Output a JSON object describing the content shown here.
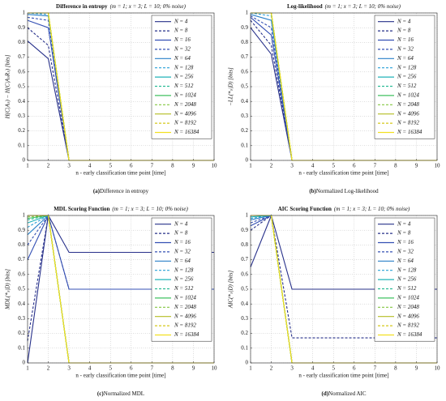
{
  "chart_data": [
    {
      "type": "line",
      "title": "Difference in entropy",
      "subtitle": "(m = 1; x = 3; L = 10; 0% noise)",
      "ylabel": "H(C|Aₛ) − H(C|AₛRₛ) [bits]",
      "xlabel": "n - early classification time point [time]",
      "caption_label": "(a)",
      "caption": "Difference in entropy",
      "x": [
        1,
        2,
        3,
        4,
        5,
        6,
        7,
        8,
        9,
        10
      ],
      "xlim": [
        1,
        10
      ],
      "xticks": [
        1,
        2,
        3,
        4,
        5,
        6,
        7,
        8,
        9,
        10
      ],
      "ylim": [
        0,
        1
      ],
      "yticks": [
        0,
        0.1,
        0.2,
        0.3,
        0.4,
        0.5,
        0.6,
        0.7,
        0.8,
        0.9,
        1
      ],
      "grid": true,
      "series": [
        {
          "name": "N = 4",
          "color": "#27308a",
          "dash": false,
          "values": [
            0.81,
            0.69,
            0,
            0,
            0,
            0,
            0,
            0,
            0,
            0
          ]
        },
        {
          "name": "N = 8",
          "color": "#27308a",
          "dash": true,
          "values": [
            0.9,
            0.78,
            0,
            0,
            0,
            0,
            0,
            0,
            0,
            0
          ]
        },
        {
          "name": "N = 16",
          "color": "#3450b4",
          "dash": false,
          "values": [
            0.95,
            0.9,
            0,
            0,
            0,
            0,
            0,
            0,
            0,
            0
          ]
        },
        {
          "name": "N = 32",
          "color": "#3450b4",
          "dash": true,
          "values": [
            0.97,
            0.95,
            0,
            0,
            0,
            0,
            0,
            0,
            0,
            0
          ]
        },
        {
          "name": "N = 64",
          "color": "#2a80c8",
          "dash": false,
          "values": [
            0.99,
            0.98,
            0,
            0,
            0,
            0,
            0,
            0,
            0,
            0
          ]
        },
        {
          "name": "N = 128",
          "color": "#28a0d8",
          "dash": true,
          "values": [
            1,
            0.99,
            0,
            0,
            0,
            0,
            0,
            0,
            0,
            0
          ]
        },
        {
          "name": "N = 256",
          "color": "#20b4b8",
          "dash": false,
          "values": [
            1,
            1,
            0,
            0,
            0,
            0,
            0,
            0,
            0,
            0
          ]
        },
        {
          "name": "N = 512",
          "color": "#2cbc96",
          "dash": true,
          "values": [
            1,
            1,
            0,
            0,
            0,
            0,
            0,
            0,
            0,
            0
          ]
        },
        {
          "name": "N = 1024",
          "color": "#40c260",
          "dash": false,
          "values": [
            1,
            1,
            0,
            0,
            0,
            0,
            0,
            0,
            0,
            0
          ]
        },
        {
          "name": "N = 2048",
          "color": "#84c840",
          "dash": true,
          "values": [
            1,
            1,
            0,
            0,
            0,
            0,
            0,
            0,
            0,
            0
          ]
        },
        {
          "name": "N = 4096",
          "color": "#b4be22",
          "dash": false,
          "values": [
            1,
            1,
            0,
            0,
            0,
            0,
            0,
            0,
            0,
            0
          ]
        },
        {
          "name": "N = 8192",
          "color": "#d6c81a",
          "dash": true,
          "values": [
            1,
            1,
            0,
            0,
            0,
            0,
            0,
            0,
            0,
            0
          ]
        },
        {
          "name": "N = 16384",
          "color": "#f2e020",
          "dash": false,
          "values": [
            1,
            1,
            0,
            0,
            0,
            0,
            0,
            0,
            0,
            0
          ]
        }
      ]
    },
    {
      "type": "line",
      "title": "Log-likelihood",
      "subtitle": "(m = 1; x = 3; L = 10; 0% noise)",
      "ylabel": "−LL(*ₛ|D) [bits]",
      "xlabel": "n - early classification time point [time]",
      "caption_label": "(b)",
      "caption": "Normalized Log-likelihood",
      "x": [
        1,
        2,
        3,
        4,
        5,
        6,
        7,
        8,
        9,
        10
      ],
      "xlim": [
        1,
        10
      ],
      "xticks": [
        1,
        2,
        3,
        4,
        5,
        6,
        7,
        8,
        9,
        10
      ],
      "ylim": [
        0,
        1
      ],
      "yticks": [
        0,
        0.1,
        0.2,
        0.3,
        0.4,
        0.5,
        0.6,
        0.7,
        0.8,
        0.9,
        1
      ],
      "grid": true,
      "series": [
        {
          "name": "N = 4",
          "color": "#27308a",
          "dash": false,
          "values": [
            0.9,
            0.72,
            0,
            0,
            0,
            0,
            0,
            0,
            0,
            0
          ]
        },
        {
          "name": "N = 8",
          "color": "#27308a",
          "dash": true,
          "values": [
            0.95,
            0.78,
            0,
            0,
            0,
            0,
            0,
            0,
            0,
            0
          ]
        },
        {
          "name": "N = 16",
          "color": "#3450b4",
          "dash": false,
          "values": [
            0.97,
            0.85,
            0,
            0,
            0,
            0,
            0,
            0,
            0,
            0
          ]
        },
        {
          "name": "N = 32",
          "color": "#3450b4",
          "dash": true,
          "values": [
            0.98,
            0.9,
            0,
            0,
            0,
            0,
            0,
            0,
            0,
            0
          ]
        },
        {
          "name": "N = 64",
          "color": "#2a80c8",
          "dash": false,
          "values": [
            0.99,
            0.95,
            0,
            0,
            0,
            0,
            0,
            0,
            0,
            0
          ]
        },
        {
          "name": "N = 128",
          "color": "#28a0d8",
          "dash": true,
          "values": [
            1,
            0.98,
            0,
            0,
            0,
            0,
            0,
            0,
            0,
            0
          ]
        },
        {
          "name": "N = 256",
          "color": "#20b4b8",
          "dash": false,
          "values": [
            1,
            1,
            0,
            0,
            0,
            0,
            0,
            0,
            0,
            0
          ]
        },
        {
          "name": "N = 512",
          "color": "#2cbc96",
          "dash": true,
          "values": [
            1,
            1,
            0,
            0,
            0,
            0,
            0,
            0,
            0,
            0
          ]
        },
        {
          "name": "N = 1024",
          "color": "#40c260",
          "dash": false,
          "values": [
            1,
            1,
            0,
            0,
            0,
            0,
            0,
            0,
            0,
            0
          ]
        },
        {
          "name": "N = 2048",
          "color": "#84c840",
          "dash": true,
          "values": [
            1,
            1,
            0,
            0,
            0,
            0,
            0,
            0,
            0,
            0
          ]
        },
        {
          "name": "N = 4096",
          "color": "#b4be22",
          "dash": false,
          "values": [
            1,
            1,
            0,
            0,
            0,
            0,
            0,
            0,
            0,
            0
          ]
        },
        {
          "name": "N = 8192",
          "color": "#d6c81a",
          "dash": true,
          "values": [
            1,
            1,
            0,
            0,
            0,
            0,
            0,
            0,
            0,
            0
          ]
        },
        {
          "name": "N = 16384",
          "color": "#f2e020",
          "dash": false,
          "values": [
            1,
            1,
            0,
            0,
            0,
            0,
            0,
            0,
            0,
            0
          ]
        }
      ]
    },
    {
      "type": "line",
      "title": "MDL Scoring Function",
      "subtitle": "(m = 1; x = 3; L = 10; 0% noise)",
      "ylabel": "MDL(*ₛ|D) [bits]",
      "xlabel": "n - early classification time point [time]",
      "caption_label": "(c)",
      "caption": "Normalized MDL",
      "x": [
        1,
        2,
        3,
        4,
        5,
        6,
        7,
        8,
        9,
        10
      ],
      "xlim": [
        1,
        10
      ],
      "xticks": [
        1,
        2,
        3,
        4,
        5,
        6,
        7,
        8,
        9,
        10
      ],
      "ylim": [
        0,
        1
      ],
      "yticks": [
        0,
        0.1,
        0.2,
        0.3,
        0.4,
        0.5,
        0.6,
        0.7,
        0.8,
        0.9,
        1
      ],
      "grid": true,
      "series": [
        {
          "name": "N = 4",
          "color": "#27308a",
          "dash": false,
          "values": [
            0,
            1,
            0.75,
            0.75,
            0.75,
            0.75,
            0.75,
            0.75,
            0.75,
            0.75
          ]
        },
        {
          "name": "N = 8",
          "color": "#27308a",
          "dash": true,
          "values": [
            0.15,
            1,
            0.5,
            0.5,
            0.5,
            0.5,
            0.5,
            0.5,
            0.5,
            0.5
          ]
        },
        {
          "name": "N = 16",
          "color": "#3450b4",
          "dash": false,
          "values": [
            0.7,
            1,
            0.5,
            0.5,
            0.5,
            0.5,
            0.5,
            0.5,
            0.5,
            0.5
          ]
        },
        {
          "name": "N = 32",
          "color": "#3450b4",
          "dash": true,
          "values": [
            0.8,
            1,
            0,
            0,
            0,
            0,
            0,
            0,
            0,
            0
          ]
        },
        {
          "name": "N = 64",
          "color": "#2a80c8",
          "dash": false,
          "values": [
            0.87,
            1,
            0,
            0,
            0,
            0,
            0,
            0,
            0,
            0
          ]
        },
        {
          "name": "N = 128",
          "color": "#28a0d8",
          "dash": true,
          "values": [
            0.92,
            1,
            0,
            0,
            0,
            0,
            0,
            0,
            0,
            0
          ]
        },
        {
          "name": "N = 256",
          "color": "#20b4b8",
          "dash": false,
          "values": [
            0.95,
            1,
            0,
            0,
            0,
            0,
            0,
            0,
            0,
            0
          ]
        },
        {
          "name": "N = 512",
          "color": "#2cbc96",
          "dash": true,
          "values": [
            0.97,
            1,
            0,
            0,
            0,
            0,
            0,
            0,
            0,
            0
          ]
        },
        {
          "name": "N = 1024",
          "color": "#40c260",
          "dash": false,
          "values": [
            0.98,
            1,
            0,
            0,
            0,
            0,
            0,
            0,
            0,
            0
          ]
        },
        {
          "name": "N = 2048",
          "color": "#84c840",
          "dash": true,
          "values": [
            0.99,
            1,
            0,
            0,
            0,
            0,
            0,
            0,
            0,
            0
          ]
        },
        {
          "name": "N = 4096",
          "color": "#b4be22",
          "dash": false,
          "values": [
            1,
            1,
            0,
            0,
            0,
            0,
            0,
            0,
            0,
            0
          ]
        },
        {
          "name": "N = 8192",
          "color": "#d6c81a",
          "dash": true,
          "values": [
            1,
            1,
            0,
            0,
            0,
            0,
            0,
            0,
            0,
            0
          ]
        },
        {
          "name": "N = 16384",
          "color": "#f2e020",
          "dash": false,
          "values": [
            1,
            1,
            0,
            0,
            0,
            0,
            0,
            0,
            0,
            0
          ]
        }
      ]
    },
    {
      "type": "line",
      "title": "AIC Scoring Function",
      "subtitle": "(m = 1; x = 3; L = 10; 0% noise)",
      "ylabel": "AIC(*ₛ|D) [bits]",
      "xlabel": "n - early classification time point [time]",
      "caption_label": "(d)",
      "caption": "Normalized AIC",
      "x": [
        1,
        2,
        3,
        4,
        5,
        6,
        7,
        8,
        9,
        10
      ],
      "xlim": [
        1,
        10
      ],
      "xticks": [
        1,
        2,
        3,
        4,
        5,
        6,
        7,
        8,
        9,
        10
      ],
      "ylim": [
        0,
        1
      ],
      "yticks": [
        0,
        0.1,
        0.2,
        0.3,
        0.4,
        0.5,
        0.6,
        0.7,
        0.8,
        0.9,
        1
      ],
      "grid": true,
      "series": [
        {
          "name": "N = 4",
          "color": "#27308a",
          "dash": false,
          "values": [
            0.65,
            1,
            0.5,
            0.5,
            0.5,
            0.5,
            0.5,
            0.5,
            0.5,
            0.5
          ]
        },
        {
          "name": "N = 8",
          "color": "#27308a",
          "dash": true,
          "values": [
            0.9,
            1,
            0.17,
            0.17,
            0.17,
            0.17,
            0.17,
            0.17,
            0.17,
            0.17
          ]
        },
        {
          "name": "N = 16",
          "color": "#3450b4",
          "dash": false,
          "values": [
            0.93,
            1,
            0,
            0,
            0,
            0,
            0,
            0,
            0,
            0
          ]
        },
        {
          "name": "N = 32",
          "color": "#3450b4",
          "dash": true,
          "values": [
            0.95,
            1,
            0,
            0,
            0,
            0,
            0,
            0,
            0,
            0
          ]
        },
        {
          "name": "N = 64",
          "color": "#2a80c8",
          "dash": false,
          "values": [
            0.97,
            1,
            0,
            0,
            0,
            0,
            0,
            0,
            0,
            0
          ]
        },
        {
          "name": "N = 128",
          "color": "#28a0d8",
          "dash": true,
          "values": [
            0.98,
            1,
            0,
            0,
            0,
            0,
            0,
            0,
            0,
            0
          ]
        },
        {
          "name": "N = 256",
          "color": "#20b4b8",
          "dash": false,
          "values": [
            0.99,
            1,
            0,
            0,
            0,
            0,
            0,
            0,
            0,
            0
          ]
        },
        {
          "name": "N = 512",
          "color": "#2cbc96",
          "dash": true,
          "values": [
            1,
            1,
            0,
            0,
            0,
            0,
            0,
            0,
            0,
            0
          ]
        },
        {
          "name": "N = 1024",
          "color": "#40c260",
          "dash": false,
          "values": [
            1,
            1,
            0,
            0,
            0,
            0,
            0,
            0,
            0,
            0
          ]
        },
        {
          "name": "N = 2048",
          "color": "#84c840",
          "dash": true,
          "values": [
            1,
            1,
            0,
            0,
            0,
            0,
            0,
            0,
            0,
            0
          ]
        },
        {
          "name": "N = 4096",
          "color": "#b4be22",
          "dash": false,
          "values": [
            1,
            1,
            0,
            0,
            0,
            0,
            0,
            0,
            0,
            0
          ]
        },
        {
          "name": "N = 8192",
          "color": "#d6c81a",
          "dash": true,
          "values": [
            1,
            1,
            0,
            0,
            0,
            0,
            0,
            0,
            0,
            0
          ]
        },
        {
          "name": "N = 16384",
          "color": "#f2e020",
          "dash": false,
          "values": [
            1,
            1,
            0,
            0,
            0,
            0,
            0,
            0,
            0,
            0
          ]
        }
      ]
    }
  ]
}
